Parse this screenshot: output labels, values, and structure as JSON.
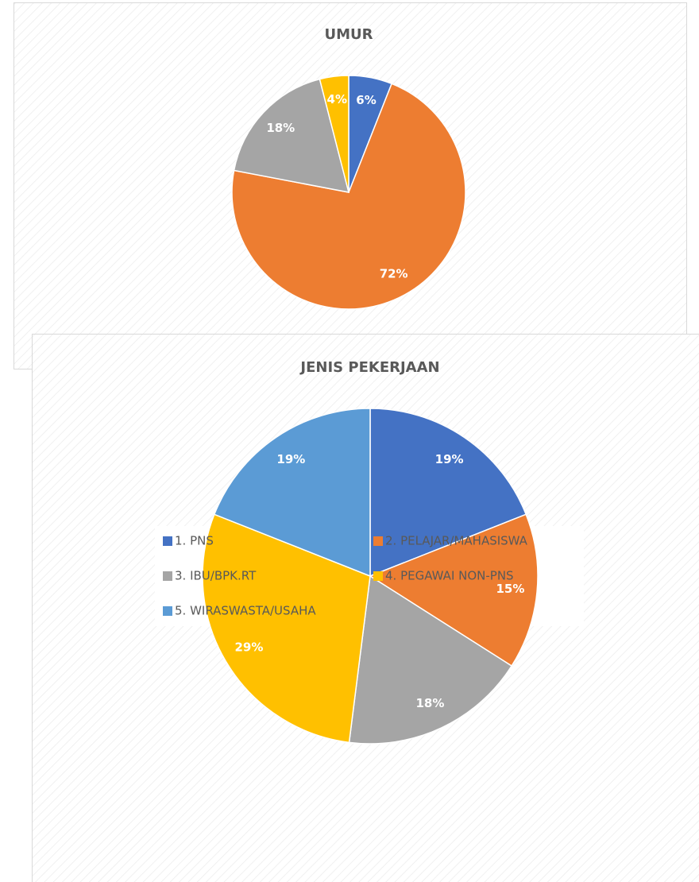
{
  "chart_data": [
    {
      "type": "pie",
      "title": "UMUR",
      "values": [
        6,
        72,
        18,
        4
      ],
      "value_labels": [
        "6%",
        "72%",
        "18%",
        "4%"
      ],
      "colors": [
        "#4472c4",
        "#ed7d31",
        "#a5a5a5",
        "#ffc000"
      ]
    },
    {
      "type": "pie",
      "title": "JENIS PEKERJAAN",
      "categories": [
        "1. PNS",
        "2. PELAJAR/MAHASISWA",
        "3. IBU/BPK.RT",
        "4. PEGAWAI NON-PNS",
        "5. WIRASWASTA/USAHA"
      ],
      "values": [
        19,
        15,
        18,
        29,
        19
      ],
      "value_labels": [
        "19%",
        "15%",
        "18%",
        "29%",
        "19%"
      ],
      "colors": [
        "#4472c4",
        "#ed7d31",
        "#a5a5a5",
        "#ffc000",
        "#5b9bd5"
      ]
    }
  ]
}
